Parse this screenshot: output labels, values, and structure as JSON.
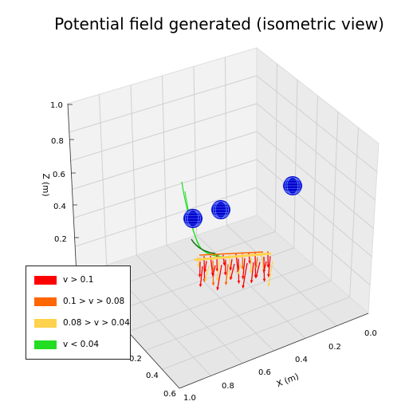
{
  "chart_data": {
    "type": "3d-quiver",
    "title": "Potential field generated (isometric view)",
    "xlabel": "X (m)",
    "ylabel": "",
    "zlabel": "Z (m)",
    "xticks": [
      "0.0",
      "0.2",
      "0.4",
      "0.6",
      "0.8",
      "1.0"
    ],
    "yticks": [
      "0.2",
      "0.4",
      "0.6"
    ],
    "zticks": [
      "0.2",
      "0.4",
      "0.6",
      "0.8",
      "1.0"
    ],
    "legend_position": "lower-left",
    "legend": [
      {
        "label": "v > 0.1",
        "color": "#ff0000"
      },
      {
        "label": "0.1 > v > 0.08",
        "color": "#ff6600"
      },
      {
        "label": "0.08 > v > 0.04",
        "color": "#ffd24d"
      },
      {
        "label": "v < 0.04",
        "color": "#22dd22"
      }
    ],
    "obstacles_color": "#0000cc"
  }
}
